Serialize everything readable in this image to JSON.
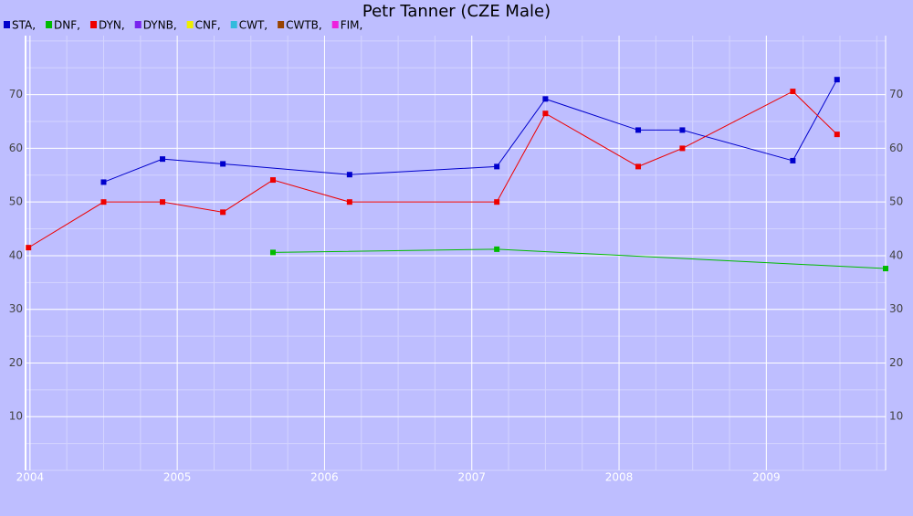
{
  "chart_data": {
    "type": "line",
    "title": "Petr Tanner (CZE Male)",
    "xlim": [
      2003.97,
      2009.81
    ],
    "xticks": [
      2004,
      2005,
      2006,
      2007,
      2008,
      2009
    ],
    "ylim": [
      0,
      81
    ],
    "yticks": [
      10,
      20,
      30,
      40,
      50,
      60,
      70
    ],
    "grid": true,
    "series": [
      {
        "name": "STA,",
        "color": "#0000cc",
        "x": [
          2004.5,
          2004.9,
          2005.31,
          2006.17,
          2007.17,
          2007.5,
          2008.13,
          2008.43,
          2009.18,
          2009.48
        ],
        "values": [
          53.7,
          58.0,
          57.1,
          55.1,
          56.6,
          69.2,
          63.4,
          63.4,
          57.7,
          72.8
        ]
      },
      {
        "name": "DNF,",
        "color": "#00bb00",
        "x": [
          2005.65,
          2007.17,
          2009.81
        ],
        "values": [
          40.6,
          41.2,
          37.6
        ]
      },
      {
        "name": "DYN,",
        "color": "#ee0000",
        "x": [
          2003.99,
          2004.5,
          2004.9,
          2005.31,
          2005.65,
          2006.17,
          2007.17,
          2007.5,
          2008.13,
          2008.43,
          2009.18,
          2009.48
        ],
        "values": [
          41.5,
          50,
          50,
          48.1,
          54.1,
          50,
          50,
          66.5,
          56.6,
          60,
          70.6,
          62.6
        ]
      },
      {
        "name": "DYNB,",
        "color": "#7722ee",
        "x": [],
        "values": []
      },
      {
        "name": "CNF,",
        "color": "#eeee00",
        "x": [],
        "values": []
      },
      {
        "name": "CWT,",
        "color": "#33bbdd",
        "x": [],
        "values": []
      },
      {
        "name": "CWTB,",
        "color": "#994400",
        "x": [],
        "values": []
      },
      {
        "name": "FIM,",
        "color": "#ee22dd",
        "x": [],
        "values": []
      }
    ]
  }
}
